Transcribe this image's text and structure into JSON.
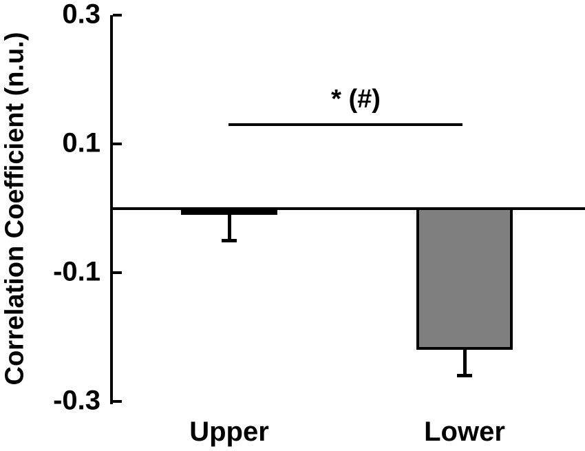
{
  "figure": {
    "background": "#ffffff",
    "text_color": "#000000"
  },
  "chart_data": {
    "type": "bar",
    "title": "",
    "xlabel": "",
    "ylabel": "Correlation Coefficient (n.u.)",
    "categories": [
      "Upper",
      "Lower"
    ],
    "values": [
      -0.01,
      -0.22
    ],
    "errors": [
      0.04,
      0.04
    ],
    "error_direction": "down",
    "baseline": 0,
    "ylim": [
      -0.3,
      0.3
    ],
    "yticks": [
      0.3,
      0.1,
      -0.1,
      -0.3
    ],
    "ytick_labels": [
      "0.3",
      "0.1",
      "-0.1",
      "-0.3"
    ],
    "bar_fill_colors": [
      "#000000",
      "#7f7f7f"
    ],
    "bar_border_color": "#000000",
    "grid": false,
    "legend": null,
    "significance": {
      "label": "* (#)",
      "line_y_value": 0.13,
      "connects": [
        "Upper",
        "Lower"
      ]
    }
  }
}
